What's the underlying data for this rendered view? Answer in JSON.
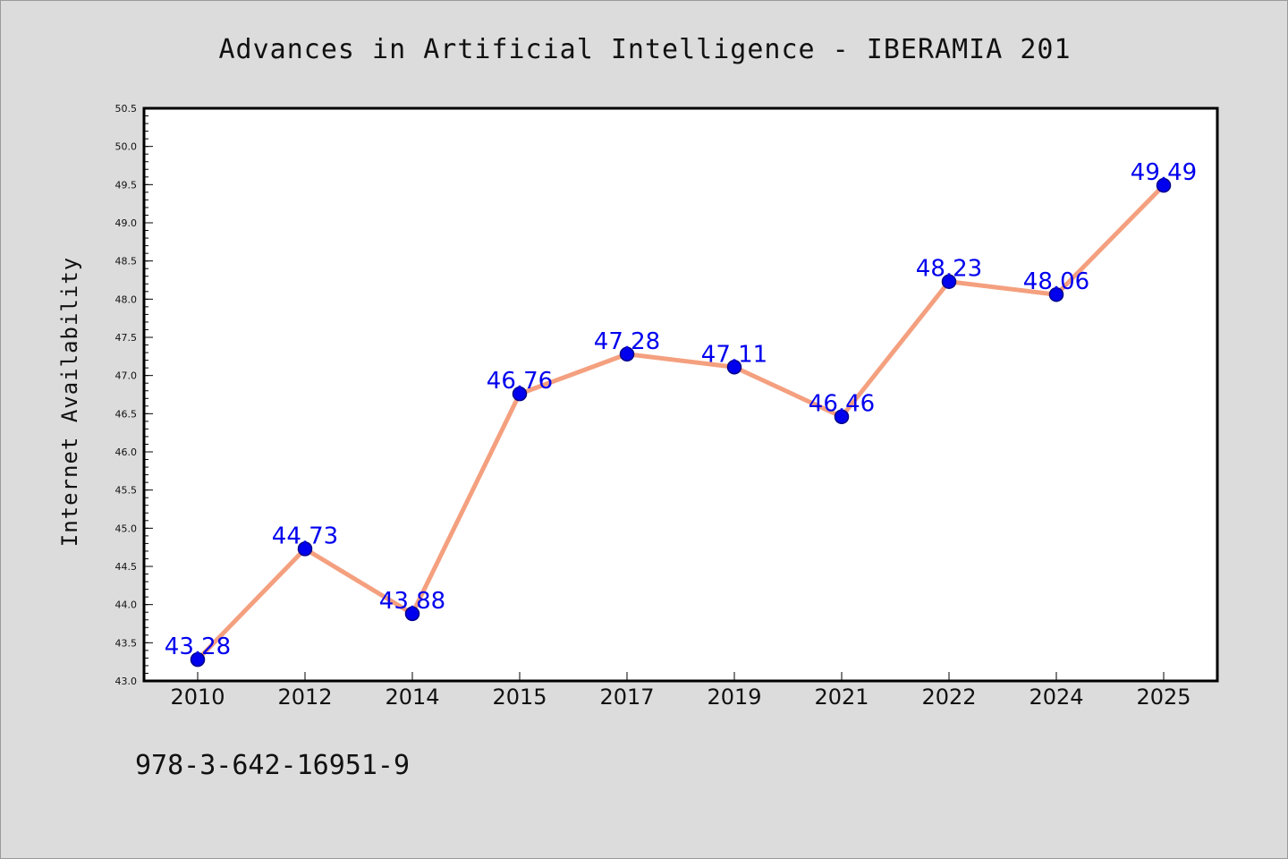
{
  "chart_data": {
    "type": "line",
    "title": "Advances in Artificial Intelligence - IBERAMIA 201",
    "xlabel": "",
    "ylabel": "Internet Availability",
    "categories": [
      "2010",
      "2012",
      "2014",
      "2015",
      "2017",
      "2019",
      "2021",
      "2022",
      "2024",
      "2025"
    ],
    "series": [
      {
        "values": [
          43.28,
          44.73,
          43.88,
          46.76,
          47.28,
          47.11,
          46.46,
          48.23,
          48.06,
          49.49
        ],
        "labels": [
          "43.28",
          "44.73",
          "43.88",
          "46.76",
          "47.28",
          "47.11",
          "46.46",
          "48.23",
          "48.06",
          "49.49"
        ]
      }
    ],
    "ylim": [
      43.0,
      50.5
    ],
    "yticks": [
      "43.0",
      "43.5",
      "44.0",
      "44.5",
      "45.0",
      "45.5",
      "46.0",
      "46.5",
      "47.0",
      "47.5",
      "48.0",
      "48.5",
      "49.0",
      "49.5",
      "50.0",
      "50.5"
    ],
    "grid": false,
    "colors": {
      "line": "#f4a07f",
      "marker": "#0000ee",
      "label": "#0000ee",
      "plot_bg": "#ffffff",
      "page_bg": "#dcdcdc"
    }
  },
  "footer": {
    "isbn": "978-3-642-16951-9"
  }
}
